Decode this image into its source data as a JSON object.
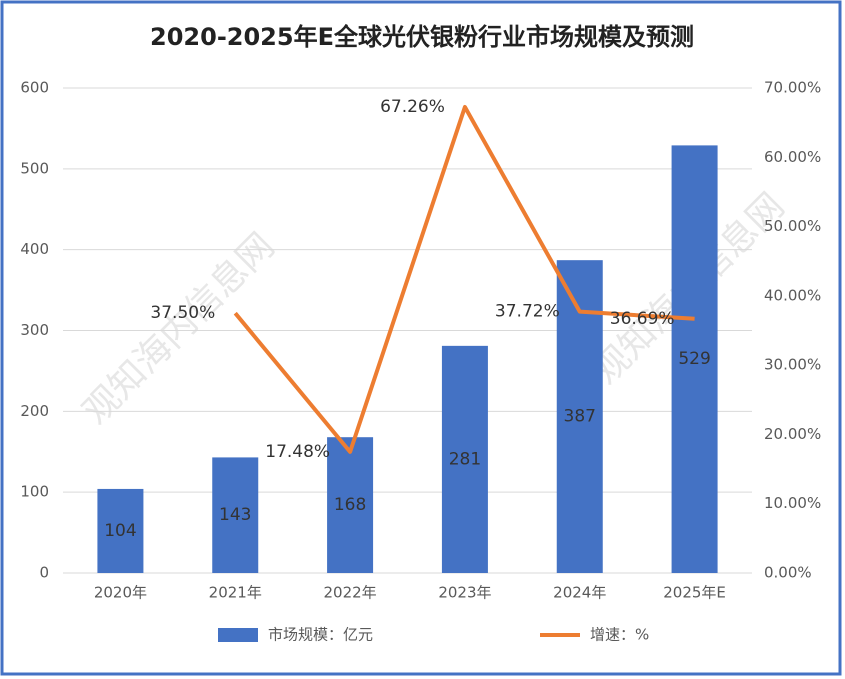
{
  "chart_data": {
    "type": "combo",
    "title": "2020-2025年E全球光伏银粉行业市场规模及预测",
    "watermark": "观知海内信息网",
    "categories": [
      "2020年",
      "2021年",
      "2022年",
      "2023年",
      "2024年",
      "2025年E"
    ],
    "series": [
      {
        "name": "市场规模：亿元",
        "type": "bar",
        "color": "#4472c4",
        "values": [
          104,
          143,
          168,
          281,
          387,
          529
        ]
      },
      {
        "name": "增速：%",
        "type": "line",
        "axis": "y2",
        "color": "#ed7d31",
        "values": [
          null,
          37.5,
          17.48,
          67.26,
          37.72,
          36.69
        ],
        "value_labels": [
          null,
          "37.50%",
          "17.48%",
          "67.26%",
          "37.72%",
          "36.69%"
        ]
      }
    ],
    "ylim": [
      0,
      600
    ],
    "yticks": [
      0,
      100,
      200,
      300,
      400,
      500,
      600
    ],
    "y2lim": [
      0,
      70
    ],
    "y2ticks": [
      {
        "value": 0,
        "label": "0.00%"
      },
      {
        "value": 10,
        "label": "10.00%"
      },
      {
        "value": 20,
        "label": "20.00%"
      },
      {
        "value": 30,
        "label": "30.00%"
      },
      {
        "value": 40,
        "label": "40.00%"
      },
      {
        "value": 50,
        "label": "50.00%"
      },
      {
        "value": 60,
        "label": "60.00%"
      },
      {
        "value": 70,
        "label": "70.00%"
      }
    ],
    "grid": true,
    "legend": "bottom"
  }
}
